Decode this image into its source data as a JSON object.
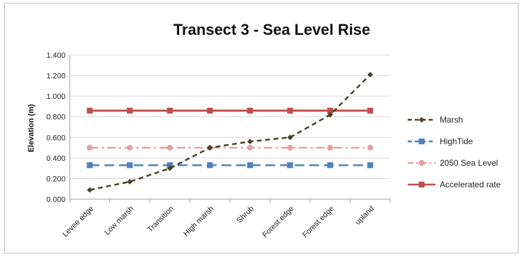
{
  "chart_data": {
    "type": "line",
    "title": "Transect 3 - Sea Level Rise",
    "xlabel": "",
    "ylabel": "Elevation (m)",
    "ylim": [
      0,
      1.4
    ],
    "yticks": [
      "0.000",
      "0.200",
      "0.400",
      "0.600",
      "0.800",
      "1.000",
      "1.200",
      "1.400"
    ],
    "categories": [
      "Levee edge",
      "Low marsh",
      "Transition",
      "High marsh",
      "Shrub",
      "Forest edge",
      "Forest edge",
      "upland"
    ],
    "grid": true,
    "legend_position": "right",
    "series": [
      {
        "name": "Marsh",
        "values": [
          0.09,
          0.17,
          0.3,
          0.5,
          0.56,
          0.6,
          0.82,
          1.21
        ],
        "color": "#4a4226",
        "style": "dashed",
        "marker": "diamond"
      },
      {
        "name": "HighTide",
        "values": [
          0.33,
          0.33,
          0.33,
          0.33,
          0.33,
          0.33,
          0.33,
          0.33
        ],
        "color": "#4f81bd",
        "style": "long-dash",
        "marker": "square"
      },
      {
        "name": "2050 Sea Level",
        "values": [
          0.5,
          0.5,
          0.5,
          0.5,
          0.5,
          0.5,
          0.5,
          0.5
        ],
        "color": "#e6a0a0",
        "style": "dash-dot",
        "marker": "circle"
      },
      {
        "name": "Accelerated rate",
        "values": [
          0.86,
          0.86,
          0.86,
          0.86,
          0.86,
          0.86,
          0.86,
          0.86
        ],
        "color": "#c0504d",
        "style": "solid",
        "marker": "square"
      }
    ]
  }
}
